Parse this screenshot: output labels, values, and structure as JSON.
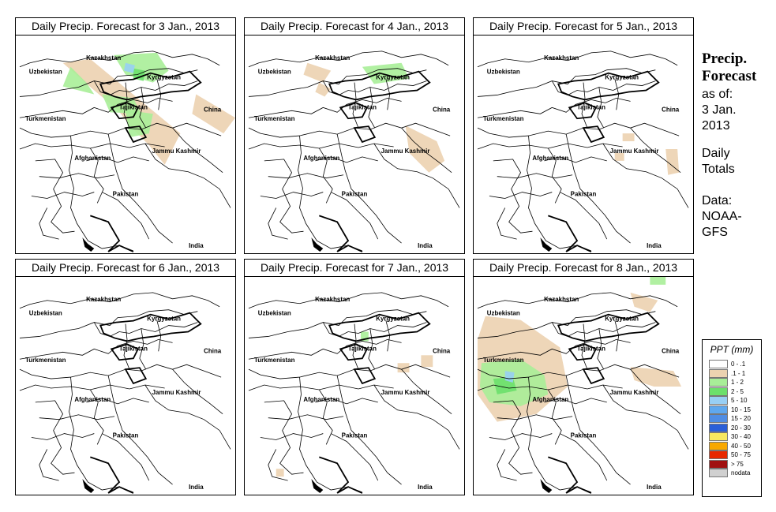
{
  "panels": [
    {
      "title": "Daily Precip. Forecast for  3 Jan., 2013",
      "precip": [
        {
          "cat": 1,
          "pts": [
            [
              60,
              35
            ],
            [
              100,
              70
            ],
            [
              130,
              95
            ],
            [
              150,
              120
            ],
            [
              170,
              140
            ],
            [
              190,
              165
            ],
            [
              210,
              125
            ],
            [
              95,
              30
            ]
          ]
        },
        {
          "cat": 2,
          "pts": [
            [
              70,
              40
            ],
            [
              90,
              60
            ],
            [
              100,
              75
            ],
            [
              60,
              65
            ]
          ]
        },
        {
          "cat": 1,
          "pts": [
            [
              230,
              75
            ],
            [
              280,
              105
            ],
            [
              265,
              125
            ],
            [
              225,
              100
            ]
          ]
        },
        {
          "cat": 2,
          "pts": [
            [
              125,
              25
            ],
            [
              180,
              22
            ],
            [
              195,
              45
            ],
            [
              175,
              60
            ],
            [
              140,
              50
            ]
          ]
        },
        {
          "cat": 2,
          "pts": [
            [
              110,
              75
            ],
            [
              150,
              80
            ],
            [
              160,
              100
            ],
            [
              120,
              98
            ]
          ]
        },
        {
          "cat": 2,
          "pts": [
            [
              140,
              95
            ],
            [
              175,
              100
            ],
            [
              170,
              125
            ],
            [
              145,
              130
            ]
          ]
        },
        {
          "cat": 3,
          "pts": [
            [
              150,
              42
            ],
            [
              165,
              45
            ],
            [
              163,
              58
            ],
            [
              150,
              55
            ]
          ]
        },
        {
          "cat": 4,
          "pts": [
            [
              140,
              35
            ],
            [
              152,
              38
            ],
            [
              150,
              48
            ],
            [
              138,
              45
            ]
          ]
        }
      ]
    },
    {
      "title": "Daily Precip. Forecast for  4 Jan., 2013",
      "precip": [
        {
          "cat": 1,
          "pts": [
            [
              205,
              115
            ],
            [
              245,
              135
            ],
            [
              255,
              160
            ],
            [
              235,
              175
            ],
            [
              210,
              150
            ]
          ]
        },
        {
          "cat": 1,
          "pts": [
            [
              80,
              35
            ],
            [
              110,
              45
            ],
            [
              100,
              60
            ],
            [
              75,
              50
            ]
          ]
        },
        {
          "cat": 2,
          "pts": [
            [
              150,
              40
            ],
            [
              200,
              35
            ],
            [
              210,
              55
            ],
            [
              165,
              62
            ]
          ]
        },
        {
          "cat": 1,
          "pts": [
            [
              95,
              60
            ],
            [
              110,
              68
            ],
            [
              102,
              78
            ],
            [
              90,
              72
            ]
          ]
        }
      ]
    },
    {
      "title": "Daily Precip. Forecast for  5 Jan., 2013",
      "precip": [
        {
          "cat": 1,
          "pts": [
            [
              180,
              150
            ],
            [
              192,
              150
            ],
            [
              192,
              160
            ],
            [
              180,
              160
            ]
          ]
        },
        {
          "cat": 1,
          "pts": [
            [
              245,
              145
            ],
            [
              260,
              145
            ],
            [
              262,
              175
            ],
            [
              248,
              178
            ]
          ]
        },
        {
          "cat": 1,
          "pts": [
            [
              190,
              125
            ],
            [
              205,
              125
            ],
            [
              205,
              135
            ],
            [
              190,
              135
            ]
          ]
        }
      ]
    },
    {
      "title": "Daily Precip. Forecast for  6 Jan., 2013",
      "precip": []
    },
    {
      "title": "Daily Precip. Forecast for  7 Jan., 2013",
      "precip": [
        {
          "cat": 1,
          "pts": [
            [
              225,
              100
            ],
            [
              240,
              100
            ],
            [
              240,
              115
            ],
            [
              225,
              115
            ]
          ]
        },
        {
          "cat": 1,
          "pts": [
            [
              195,
              110
            ],
            [
              210,
              110
            ],
            [
              210,
              122
            ],
            [
              195,
              122
            ]
          ]
        },
        {
          "cat": 1,
          "pts": [
            [
              40,
              245
            ],
            [
              50,
              245
            ],
            [
              50,
              255
            ],
            [
              40,
              255
            ]
          ]
        },
        {
          "cat": 2,
          "pts": [
            [
              148,
              70
            ],
            [
              158,
              70
            ],
            [
              158,
              82
            ],
            [
              148,
              82
            ]
          ]
        }
      ]
    },
    {
      "title": "Daily Precip. Forecast for  8 Jan., 2013",
      "precip": [
        {
          "cat": 1,
          "pts": [
            [
              15,
              50
            ],
            [
              60,
              55
            ],
            [
              110,
              90
            ],
            [
              120,
              140
            ],
            [
              80,
              175
            ],
            [
              30,
              185
            ],
            [
              5,
              150
            ],
            [
              5,
              80
            ]
          ]
        },
        {
          "cat": 2,
          "pts": [
            [
              10,
              110
            ],
            [
              60,
              105
            ],
            [
              90,
              125
            ],
            [
              95,
              150
            ],
            [
              60,
              165
            ],
            [
              20,
              160
            ],
            [
              8,
              140
            ]
          ]
        },
        {
          "cat": 3,
          "pts": [
            [
              25,
              130
            ],
            [
              50,
              128
            ],
            [
              55,
              145
            ],
            [
              30,
              150
            ]
          ]
        },
        {
          "cat": 4,
          "pts": [
            [
              40,
              120
            ],
            [
              52,
              122
            ],
            [
              50,
              135
            ],
            [
              40,
              132
            ]
          ]
        },
        {
          "cat": 1,
          "pts": [
            [
              200,
              115
            ],
            [
              255,
              120
            ],
            [
              265,
              140
            ],
            [
              230,
              140
            ],
            [
              205,
              132
            ]
          ]
        },
        {
          "cat": 2,
          "pts": [
            [
              225,
              0
            ],
            [
              245,
              0
            ],
            [
              245,
              10
            ],
            [
              225,
              10
            ]
          ]
        },
        {
          "cat": 1,
          "pts": [
            [
              200,
              20
            ],
            [
              235,
              30
            ],
            [
              225,
              45
            ],
            [
              205,
              38
            ]
          ]
        }
      ]
    }
  ],
  "labels": [
    {
      "name": "Kazakhstan",
      "x": 112,
      "y": 31
    },
    {
      "name": "Uzbekistan",
      "x": 38,
      "y": 49
    },
    {
      "name": "Kyrgyzstan",
      "x": 189,
      "y": 56
    },
    {
      "name": "Tajikistan",
      "x": 150,
      "y": 94
    },
    {
      "name": "China",
      "x": 251,
      "y": 97
    },
    {
      "name": "Turkmenistan",
      "x": 38,
      "y": 109
    },
    {
      "name": "Jammu Kashmir",
      "x": 205,
      "y": 150
    },
    {
      "name": "Afghanistan",
      "x": 98,
      "y": 159
    },
    {
      "name": "Pakistan",
      "x": 140,
      "y": 205
    },
    {
      "name": "India",
      "x": 230,
      "y": 271
    }
  ],
  "side": {
    "heading1": "Precip.",
    "heading2": "Forecast",
    "asof": "as of:",
    "date1": "3 Jan.",
    "date2": "2013",
    "daily1": "Daily",
    "daily2": "Totals",
    "data1": "Data:",
    "data2": "NOAA-",
    "data3": "GFS"
  },
  "legend": {
    "title": "PPT (mm)",
    "items": [
      {
        "label": "0 - .1",
        "color": "#ffffff"
      },
      {
        "label": ".1 - 1",
        "color": "#ecd2b0"
      },
      {
        "label": "1 - 2",
        "color": "#a8ee98"
      },
      {
        "label": "2 - 5",
        "color": "#6ce06c"
      },
      {
        "label": "5 - 10",
        "color": "#98cff4"
      },
      {
        "label": "10 - 15",
        "color": "#5fa8ee"
      },
      {
        "label": "15 - 20",
        "color": "#4f8de4"
      },
      {
        "label": "20 - 30",
        "color": "#2a5fd8"
      },
      {
        "label": "30 - 40",
        "color": "#f8e860"
      },
      {
        "label": "40 - 50",
        "color": "#f8a800"
      },
      {
        "label": "50 - 75",
        "color": "#e82800"
      },
      {
        "label": "> 75",
        "color": "#a01010"
      },
      {
        "label": "nodata",
        "color": "#d0d0d0"
      }
    ]
  }
}
